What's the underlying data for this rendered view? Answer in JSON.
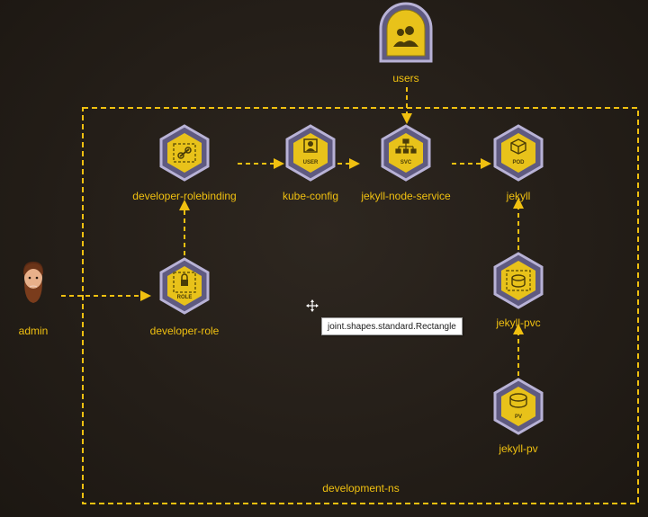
{
  "nodes": {
    "users": {
      "label": "users",
      "icon": "users-icon"
    },
    "developer_rolebinding": {
      "label": "developer-rolebinding",
      "icon": "link-icon"
    },
    "kube_config": {
      "label": "kube-config",
      "icon": "user-icon",
      "badge": "USER"
    },
    "jekyll_node_service": {
      "label": "jekyll-node-service",
      "icon": "network-tree-icon",
      "badge": "SVC"
    },
    "jekyll": {
      "label": "jekyll",
      "icon": "cube-icon",
      "badge": "POD"
    },
    "admin": {
      "label": "admin",
      "icon": "bearded-man-avatar"
    },
    "developer_role": {
      "label": "developer-role",
      "icon": "lock-icon",
      "badge": "ROLE"
    },
    "jekyll_pvc": {
      "label": "jekyll-pvc",
      "icon": "volume-claim-icon"
    },
    "jekyll_pv": {
      "label": "jekyll-pv",
      "icon": "disk-icon",
      "badge": "PV"
    }
  },
  "namespace": {
    "label": "development-ns"
  },
  "tooltip": {
    "text": "joint.shapes.standard.Rectangle"
  },
  "colors": {
    "background": "#241e18",
    "accent": "#f0c010",
    "icon_fill": "#e8c21a",
    "hex_border": "#9a94b8",
    "hex_rim": "#5f5a80"
  }
}
